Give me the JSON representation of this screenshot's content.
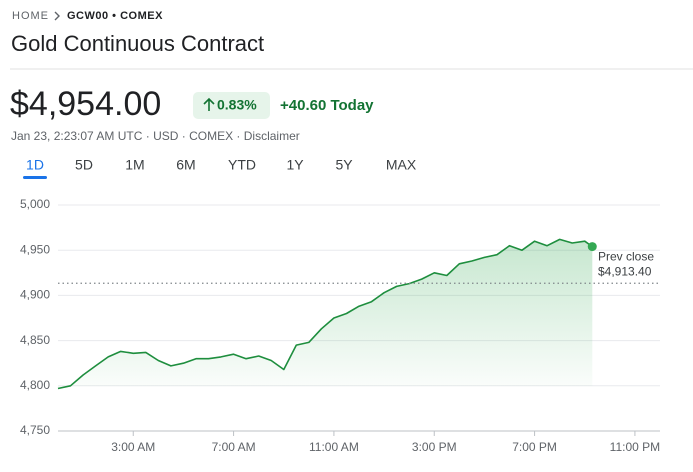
{
  "breadcrumb": {
    "home": "HOME",
    "symbol": "GCW00 • COMEX"
  },
  "title": "Gold Continuous Contract",
  "price": "$4,954.00",
  "change_pct": "0.83%",
  "change_today": "+40.60 Today",
  "meta": "Jan 23, 2:23:07 AM UTC · USD · COMEX · Disclaimer",
  "ranges": [
    "1D",
    "5D",
    "1M",
    "6M",
    "YTD",
    "1Y",
    "5Y",
    "MAX"
  ],
  "selected_range": 0,
  "chart_data": {
    "type": "line",
    "color": "#1e8e3e",
    "x": [
      0,
      0.5,
      1,
      1.5,
      2,
      2.5,
      3,
      3.5,
      4,
      4.5,
      5,
      5.5,
      6,
      6.5,
      7,
      7.5,
      8,
      8.5,
      9,
      9.5,
      10,
      10.5,
      11,
      11.5,
      12,
      12.5,
      13,
      13.5,
      14,
      14.5,
      15,
      15.5,
      16,
      16.5,
      17,
      17.5,
      18,
      18.5,
      19,
      19.5,
      20,
      20.5,
      21,
      21.3
    ],
    "values": [
      4797,
      4800,
      4812,
      4822,
      4832,
      4838,
      4836,
      4837,
      4828,
      4822,
      4825,
      4830,
      4830,
      4832,
      4835,
      4830,
      4833,
      4828,
      4818,
      4845,
      4848,
      4863,
      4875,
      4880,
      4888,
      4893,
      4903,
      4910,
      4913,
      4918,
      4925,
      4922,
      4935,
      4938,
      4942,
      4945,
      4955,
      4950,
      4960,
      4955,
      4962,
      4958,
      4960,
      4954
    ],
    "xlim": [
      0,
      24
    ],
    "xticks": [
      {
        "value": 3,
        "label": "3:00 AM"
      },
      {
        "value": 7,
        "label": "7:00 AM"
      },
      {
        "value": 11,
        "label": "11:00 AM"
      },
      {
        "value": 15,
        "label": "3:00 PM"
      },
      {
        "value": 19,
        "label": "7:00 PM"
      },
      {
        "value": 23,
        "label": "11:00 PM"
      }
    ],
    "ylim": [
      4750,
      5000
    ],
    "yticks": [
      {
        "value": 4750,
        "label": "4,750"
      },
      {
        "value": 4800,
        "label": "4,800"
      },
      {
        "value": 4850,
        "label": "4,850"
      },
      {
        "value": 4900,
        "label": "4,900"
      },
      {
        "value": 4950,
        "label": "4,950"
      },
      {
        "value": 5000,
        "label": "5,000"
      }
    ],
    "grid": true,
    "prev_close": {
      "label": "Prev close",
      "value": 4913.4,
      "value_label": "$4,913.40"
    }
  }
}
